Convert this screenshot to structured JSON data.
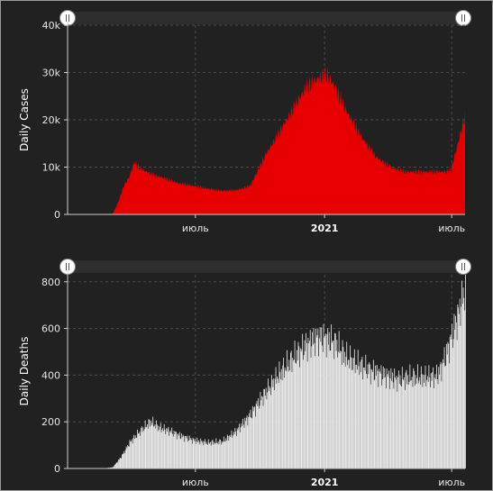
{
  "chart_data": [
    {
      "type": "area",
      "ylabel": "Daily Cases",
      "ylim": [
        0,
        40000
      ],
      "yticks": [
        0,
        10000,
        20000,
        30000,
        40000
      ],
      "ytick_labels": [
        "0",
        "10k",
        "20k",
        "30k",
        "40k"
      ],
      "xticks": [
        {
          "label": "июль",
          "bold": false,
          "day": 182
        },
        {
          "label": "2021",
          "bold": true,
          "day": 366
        },
        {
          "label": "июль",
          "bold": false,
          "day": 547
        }
      ],
      "x_range": [
        0,
        566
      ],
      "grid": true,
      "color": "#e60000",
      "series_keypoints": [
        [
          0,
          0
        ],
        [
          50,
          0
        ],
        [
          64,
          100
        ],
        [
          72,
          2500
        ],
        [
          80,
          6000
        ],
        [
          88,
          8000
        ],
        [
          95,
          11000
        ],
        [
          105,
          9500
        ],
        [
          120,
          8500
        ],
        [
          140,
          7500
        ],
        [
          160,
          6500
        ],
        [
          180,
          6000
        ],
        [
          200,
          5400
        ],
        [
          220,
          5000
        ],
        [
          240,
          5100
        ],
        [
          260,
          6000
        ],
        [
          280,
          12000
        ],
        [
          300,
          17000
        ],
        [
          320,
          22000
        ],
        [
          340,
          27000
        ],
        [
          360,
          29000
        ],
        [
          370,
          29500
        ],
        [
          380,
          27000
        ],
        [
          400,
          21000
        ],
        [
          420,
          16000
        ],
        [
          440,
          12000
        ],
        [
          460,
          10000
        ],
        [
          480,
          9000
        ],
        [
          510,
          9000
        ],
        [
          540,
          9000
        ],
        [
          546,
          9500
        ],
        [
          556,
          15000
        ],
        [
          566,
          21000
        ],
        [
          575,
          24000
        ],
        [
          580,
          25000
        ]
      ]
    },
    {
      "type": "bar",
      "ylabel": "Daily Deaths",
      "ylim": [
        0,
        830
      ],
      "yticks": [
        0,
        200,
        400,
        600,
        800
      ],
      "ytick_labels": [
        "0",
        "200",
        "400",
        "600",
        "800"
      ],
      "xticks": [
        {
          "label": "июль",
          "bold": false,
          "day": 182
        },
        {
          "label": "2021",
          "bold": true,
          "day": 366
        },
        {
          "label": "июль",
          "bold": false,
          "day": 547
        }
      ],
      "x_range": [
        0,
        566
      ],
      "grid": true,
      "color": "#eaeaea",
      "series_keypoints": [
        [
          0,
          0
        ],
        [
          50,
          0
        ],
        [
          64,
          5
        ],
        [
          76,
          50
        ],
        [
          88,
          110
        ],
        [
          100,
          150
        ],
        [
          110,
          180
        ],
        [
          118,
          200
        ],
        [
          130,
          175
        ],
        [
          145,
          160
        ],
        [
          160,
          140
        ],
        [
          180,
          120
        ],
        [
          200,
          110
        ],
        [
          220,
          115
        ],
        [
          240,
          160
        ],
        [
          260,
          230
        ],
        [
          280,
          320
        ],
        [
          300,
          400
        ],
        [
          320,
          470
        ],
        [
          340,
          530
        ],
        [
          355,
          560
        ],
        [
          365,
          560
        ],
        [
          380,
          540
        ],
        [
          395,
          480
        ],
        [
          410,
          450
        ],
        [
          430,
          420
        ],
        [
          450,
          400
        ],
        [
          470,
          380
        ],
        [
          490,
          390
        ],
        [
          510,
          390
        ],
        [
          525,
          395
        ],
        [
          530,
          420
        ],
        [
          540,
          500
        ],
        [
          555,
          650
        ],
        [
          566,
          780
        ],
        [
          572,
          800
        ]
      ]
    }
  ]
}
